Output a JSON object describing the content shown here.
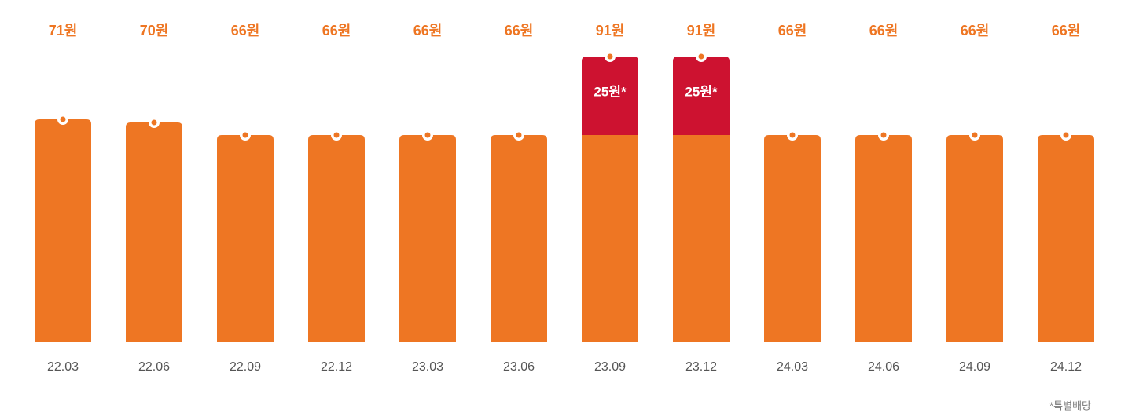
{
  "chart_data": {
    "type": "stacked_bar",
    "categories": [
      "22.03",
      "22.06",
      "22.09",
      "22.12",
      "23.03",
      "23.06",
      "23.09",
      "23.12",
      "24.03",
      "24.06",
      "24.09",
      "24.12"
    ],
    "total_labels": [
      "71원",
      "70원",
      "66원",
      "66원",
      "66원",
      "66원",
      "91원",
      "91원",
      "66원",
      "66원",
      "66원",
      "66원"
    ],
    "series": [
      {
        "color": "#ee7623",
        "values": [
          71,
          70,
          66,
          66,
          66,
          66,
          66,
          66,
          66,
          66,
          66,
          66
        ]
      },
      {
        "color": "#cd1230",
        "values": [
          null,
          null,
          null,
          null,
          null,
          null,
          25,
          25,
          null,
          null,
          null,
          null
        ],
        "value_labels": [
          null,
          null,
          null,
          null,
          null,
          null,
          "25원*",
          "25원*",
          null,
          null,
          null,
          null
        ]
      }
    ],
    "footnote": "*특별배당"
  }
}
